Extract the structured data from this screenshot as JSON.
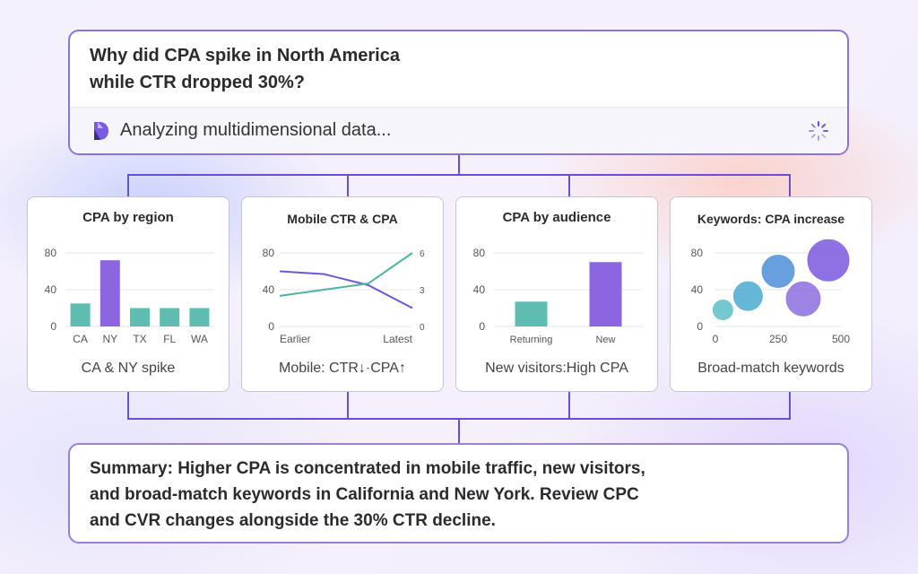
{
  "question": {
    "line1": "Why did CPA spike in North America",
    "line2": "while CTR dropped 30%?"
  },
  "status": {
    "text": "Analyzing multidimensional data...",
    "logo_icon": "app-logo-icon",
    "spinner_icon": "loading-spinner-icon"
  },
  "cards": [
    {
      "title": "CPA by region",
      "caption": "CA & NY spike"
    },
    {
      "title": "Mobile CTR & CPA",
      "caption": "Mobile: CTR↓·CPA↑"
    },
    {
      "title": "CPA by audience",
      "caption": "New visitors:High CPA"
    },
    {
      "title": "Keywords: CPA increase",
      "caption": "Broad-match keywords"
    }
  ],
  "summary": {
    "line1": "Summary: Higher CPA is concentrated in mobile traffic, new visitors,",
    "line2": "and broad-match keywords in California and New York. Review CPC",
    "line3": "and CVR changes alongside the 30% CTR decline."
  },
  "colors": {
    "accent": "#6a4fd0",
    "teal": "#5fbcb0",
    "purple": "#8b66e0"
  },
  "chart_data": [
    {
      "type": "bar",
      "title": "CPA by region",
      "categories": [
        "CA",
        "NY",
        "TX",
        "FL",
        "WA"
      ],
      "values": [
        25,
        72,
        20,
        20,
        20
      ],
      "ylim": [
        0,
        80
      ],
      "yticks": [
        0,
        40,
        80
      ],
      "colors": [
        "#5fbcb0",
        "#8b66e0",
        "#5fbcb0",
        "#5fbcb0",
        "#5fbcb0"
      ]
    },
    {
      "type": "line",
      "title": "Mobile CTR & CPA",
      "x_labels": [
        "Earlier",
        "Latest"
      ],
      "ylim": [
        0,
        80
      ],
      "yticks": [
        0,
        40,
        80
      ],
      "y2lim": [
        0,
        6
      ],
      "y2ticks": [
        0,
        3,
        6
      ],
      "series": [
        {
          "values": [
            60,
            57,
            45,
            20
          ],
          "axis": "left",
          "color": "#7056d4"
        },
        {
          "values": [
            2.5,
            3.0,
            3.5,
            6.0
          ],
          "axis": "right",
          "color": "#4cb3a6"
        }
      ]
    },
    {
      "type": "bar",
      "title": "CPA by audience",
      "categories": [
        "Returning",
        "New"
      ],
      "values": [
        27,
        70
      ],
      "ylim": [
        0,
        80
      ],
      "yticks": [
        0,
        40,
        80
      ],
      "colors": [
        "#5fbcb0",
        "#8b66e0"
      ]
    },
    {
      "type": "scatter",
      "title": "Keywords: CPA increase",
      "xlim": [
        0,
        500
      ],
      "xticks": [
        0,
        250,
        500
      ],
      "ylim": [
        0,
        80
      ],
      "yticks": [
        0,
        40,
        80
      ],
      "points": [
        {
          "x": 30,
          "y": 18,
          "size": 12,
          "color": "#5cc0c8"
        },
        {
          "x": 130,
          "y": 33,
          "size": 17,
          "color": "#4aa9d0"
        },
        {
          "x": 250,
          "y": 60,
          "size": 19,
          "color": "#4d8fd8"
        },
        {
          "x": 350,
          "y": 30,
          "size": 20,
          "color": "#8b6fe0"
        },
        {
          "x": 450,
          "y": 72,
          "size": 24,
          "color": "#7d58df"
        }
      ]
    }
  ]
}
